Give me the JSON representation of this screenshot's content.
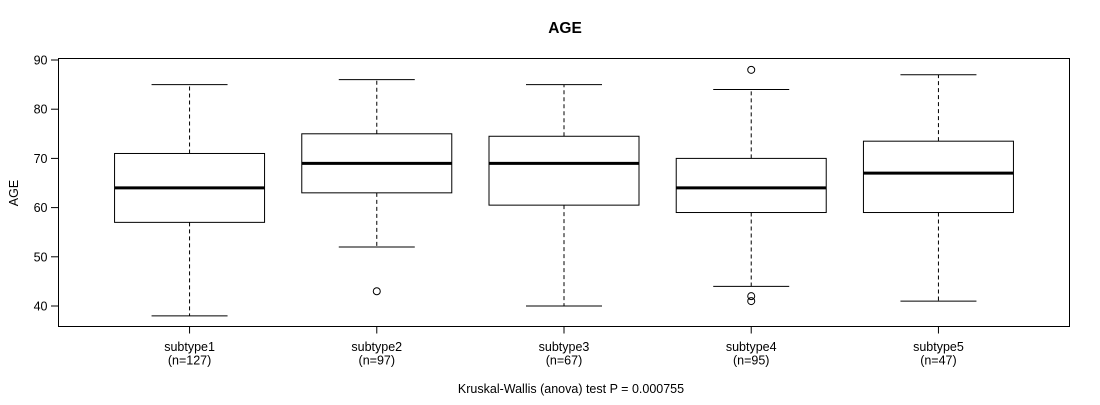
{
  "title": "AGE",
  "y_axis": {
    "label": "AGE",
    "ticks": [
      90,
      80,
      70,
      60,
      50,
      40
    ]
  },
  "footer": "Kruskal-Wallis (anova) test P = 0.000755",
  "chart_data": {
    "type": "boxplot",
    "title": "AGE",
    "xlabel": "",
    "ylabel": "AGE",
    "ylim": [
      36,
      90
    ],
    "yticks": [
      40,
      50,
      60,
      70,
      80,
      90
    ],
    "grid": false,
    "legend": "none",
    "annotation": "Kruskal-Wallis (anova) test P = 0.000755",
    "categories": [
      "subtype1",
      "subtype2",
      "subtype3",
      "subtype4",
      "subtype5"
    ],
    "category_sublabels": [
      "(n=127)",
      "(n=97)",
      "(n=67)",
      "(n=95)",
      "(n=47)"
    ],
    "groups": [
      {
        "label": "subtype1",
        "n": 127,
        "whisker_low": 38,
        "q1": 57,
        "median": 64,
        "q3": 71,
        "whisker_high": 85,
        "outliers": []
      },
      {
        "label": "subtype2",
        "n": 97,
        "whisker_low": 52,
        "q1": 63,
        "median": 69,
        "q3": 75,
        "whisker_high": 86,
        "outliers": [
          43
        ]
      },
      {
        "label": "subtype3",
        "n": 67,
        "whisker_low": 40,
        "q1": 60.5,
        "median": 69,
        "q3": 74.5,
        "whisker_high": 85,
        "outliers": []
      },
      {
        "label": "subtype4",
        "n": 95,
        "whisker_low": 44,
        "q1": 59,
        "median": 64,
        "q3": 70,
        "whisker_high": 84,
        "outliers": [
          88,
          42,
          41
        ]
      },
      {
        "label": "subtype5",
        "n": 47,
        "whisker_low": 41,
        "q1": 59,
        "median": 67,
        "q3": 73.5,
        "whisker_high": 87,
        "outliers": []
      }
    ],
    "style": {
      "line_color": "#000000",
      "box_fill": "#ffffff",
      "background": "#ffffff"
    }
  }
}
